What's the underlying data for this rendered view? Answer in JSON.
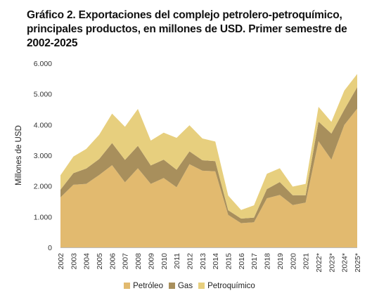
{
  "title": "Gráfico 2. Exportaciones del complejo petrolero-petroquímico, principales productos, en millones de USD. Primer semestre de 2002-2025",
  "chart_data": {
    "type": "area",
    "stacked": true,
    "ylabel": "Millones de USD",
    "xlabel": "",
    "ylim": [
      0,
      6000
    ],
    "yticks": [
      0,
      1000,
      2000,
      3000,
      4000,
      5000,
      6000
    ],
    "ytick_labels": [
      "0",
      "1.000",
      "2.000",
      "3.000",
      "4.000",
      "5.000",
      "6.000"
    ],
    "grid": false,
    "legend": "bottom",
    "categories": [
      "2002",
      "2003",
      "2004",
      "2005",
      "2006",
      "2007",
      "2008",
      "2009",
      "2010",
      "2011",
      "2012",
      "2013",
      "2014",
      "2015",
      "2016",
      "2017",
      "2018",
      "2019",
      "2020",
      "2021",
      "2022*",
      "2023*",
      "2024*",
      "2025*"
    ],
    "series": [
      {
        "name": "Petróleo",
        "color": "#e2ba6f",
        "values": [
          1630,
          2040,
          2070,
          2360,
          2680,
          2120,
          2580,
          2070,
          2260,
          1960,
          2710,
          2500,
          2480,
          1060,
          790,
          820,
          1600,
          1710,
          1380,
          1460,
          3460,
          2860,
          3990,
          4520
        ]
      },
      {
        "name": "Gas",
        "color": "#a88f5c",
        "values": [
          250,
          380,
          500,
          520,
          720,
          730,
          730,
          600,
          600,
          570,
          420,
          340,
          330,
          150,
          150,
          150,
          300,
          420,
          320,
          240,
          640,
          850,
          500,
          700
        ]
      },
      {
        "name": "Petroquímico",
        "color": "#e7cf7e",
        "values": [
          470,
          540,
          640,
          790,
          960,
          1080,
          1200,
          810,
          880,
          1040,
          850,
          710,
          640,
          480,
          280,
          400,
          500,
          450,
          280,
          370,
          480,
          380,
          620,
          430
        ]
      }
    ]
  }
}
